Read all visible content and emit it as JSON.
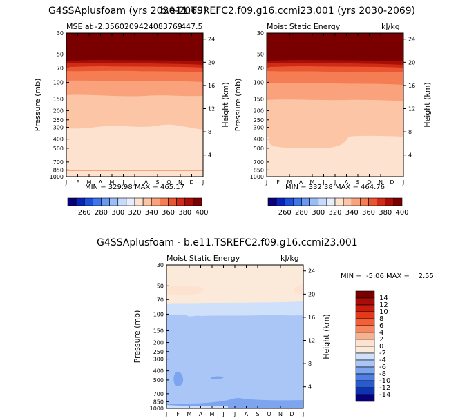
{
  "titles": {
    "top_left": "G4SSAplusfoam (yrs 2030-2069)",
    "top_right": "b.e11.TSREFC2.f09.g16.ccmi23.001 (yrs 2030-2069)",
    "bottom": "G4SSAplusfoam - b.e11.TSREFC2.f09.g16.ccmi23.001"
  },
  "chart_data": [
    {
      "type": "heatmap",
      "panel": "top-left",
      "subtitle_left": "MSE at -2.3560209424083769",
      "subtitle_right": "447.5",
      "ylabel": "Pressure (mb)",
      "ylabel_right": "Height (km)",
      "x_ticks": [
        "J",
        "F",
        "M",
        "A",
        "M",
        "J",
        "J",
        "A",
        "S",
        "O",
        "N",
        "D",
        "J"
      ],
      "y_ticks": [
        "30",
        "50",
        "70",
        "100",
        "150",
        "200",
        "250",
        "300",
        "400",
        "500",
        "700",
        "850",
        "1000"
      ],
      "right_ticks": [
        "24",
        "20",
        "16",
        "12",
        "8",
        "4"
      ],
      "stats": "MIN = 329.98 MAX = 465.17",
      "min": 329.98,
      "max": 465.17,
      "colorbar": {
        "labels": [
          "260",
          "280",
          "300",
          "320",
          "340",
          "360",
          "380",
          "400"
        ]
      }
    },
    {
      "type": "heatmap",
      "panel": "top-right",
      "subtitle_left": "Moist Static Energy",
      "subtitle_right": "kJ/kg",
      "ylabel": "Pressure (mb)",
      "ylabel_right": "Height (km)",
      "x_ticks": [
        "J",
        "F",
        "M",
        "A",
        "M",
        "J",
        "J",
        "A",
        "S",
        "O",
        "N",
        "D",
        "J"
      ],
      "y_ticks": [
        "30",
        "50",
        "70",
        "100",
        "150",
        "200",
        "250",
        "300",
        "400",
        "500",
        "700",
        "850",
        "1000"
      ],
      "right_ticks": [
        "24",
        "20",
        "16",
        "12",
        "8",
        "4"
      ],
      "stats": "MIN = 332.38 MAX = 464.76",
      "min": 332.38,
      "max": 464.76,
      "colorbar": {
        "labels": [
          "260",
          "280",
          "300",
          "320",
          "340",
          "360",
          "380",
          "400"
        ]
      }
    },
    {
      "type": "heatmap",
      "panel": "bottom",
      "subtitle_left": "Moist Static Energy",
      "subtitle_right": "kJ/kg",
      "ylabel": "Pressure (mb)",
      "ylabel_right": "Height (km)",
      "x_ticks": [
        "J",
        "F",
        "M",
        "A",
        "M",
        "J",
        "J",
        "A",
        "S",
        "O",
        "N",
        "D",
        "J"
      ],
      "y_ticks": [
        "30",
        "50",
        "70",
        "100",
        "150",
        "200",
        "250",
        "300",
        "400",
        "500",
        "700",
        "850",
        "1000"
      ],
      "right_ticks": [
        "24",
        "20",
        "16",
        "12",
        "8",
        "4"
      ],
      "stats": "MIN =  -5.06 MAX =    2.55",
      "min": -5.06,
      "max": 2.55,
      "colorbar": {
        "labels": [
          "14",
          "12",
          "10",
          "8",
          "6",
          "4",
          "2",
          "0",
          "-2",
          "-4",
          "-6",
          "-8",
          "-10",
          "-12",
          "-14"
        ]
      }
    }
  ],
  "colors": {
    "abs_scale": [
      "#08007a",
      "#0a22b8",
      "#1d4fd8",
      "#3e76ee",
      "#6c98f2",
      "#9cbcf6",
      "#c6dbfb",
      "#e6eefc",
      "#fde3cf",
      "#fcc6a6",
      "#f9a27b",
      "#f57d54",
      "#ea5532",
      "#cf2b16",
      "#a80e07",
      "#7a0000"
    ],
    "diff_scale": [
      "#7a0000",
      "#a80e07",
      "#c81c0c",
      "#e43a1c",
      "#f2603a",
      "#f7875e",
      "#f8b08e",
      "#fde3cf",
      "#fbe9da",
      "#cfe0fa",
      "#a9c6f6",
      "#7da4ef",
      "#4f7fe3",
      "#2a5ad1",
      "#0f33b0",
      "#08007a"
    ]
  }
}
